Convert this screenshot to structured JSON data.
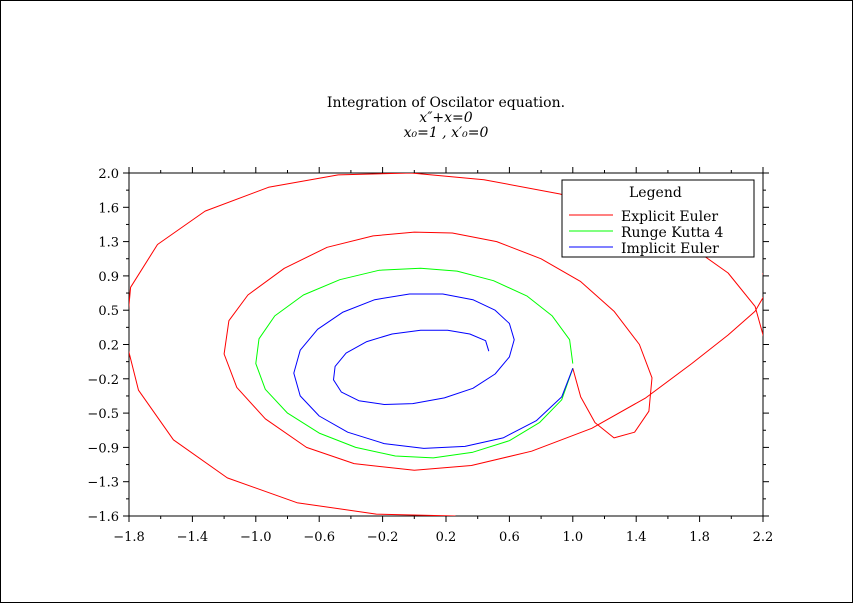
{
  "chart_data": {
    "type": "line",
    "title_lines": [
      "Integration of Oscilator equation.",
      "x″+x=0",
      "x₀=1 ,  x′₀=0"
    ],
    "xlabel": "",
    "ylabel": "",
    "xlim": [
      -1.8,
      2.2
    ],
    "ylim": [
      -1.6,
      2.0
    ],
    "x_ticks": [
      "−1.8",
      "−1.4",
      "−1.0",
      "−0.6",
      "−0.2",
      "0.2",
      "0.6",
      "1.0",
      "1.4",
      "1.8",
      "2.2"
    ],
    "y_ticks": [
      "2.0",
      "1.6",
      "1.3",
      "0.9",
      "0.5",
      "0.2",
      "−0.2",
      "−0.5",
      "−0.9",
      "−1.3",
      "−1.6"
    ],
    "grid": false,
    "legend": {
      "title": "Legend",
      "placement": "top-right"
    },
    "series": [
      {
        "name": "Explicit Euler",
        "color": "#ff0000",
        "x": [
          1.0,
          1.05,
          1.14,
          1.26,
          1.39,
          1.48,
          1.5,
          1.42,
          1.26,
          1.05,
          0.8,
          0.52,
          0.24,
          0.0,
          -0.26,
          -0.55,
          -0.82,
          -1.05,
          -1.17,
          -1.2,
          -1.12,
          -0.94,
          -0.68,
          -0.38,
          0.0,
          0.36,
          0.74,
          1.12,
          1.46,
          1.75,
          1.98,
          2.15,
          2.22,
          2.2
        ],
        "y": [
          -0.05,
          -0.35,
          -0.62,
          -0.78,
          -0.72,
          -0.5,
          -0.15,
          0.2,
          0.55,
          0.86,
          1.1,
          1.28,
          1.37,
          1.38,
          1.34,
          1.22,
          1.0,
          0.72,
          0.45,
          0.1,
          -0.25,
          -0.58,
          -0.88,
          -1.05,
          -1.12,
          -1.07,
          -0.92,
          -0.68,
          -0.36,
          0.0,
          0.3,
          0.55,
          0.75,
          0.95
        ]
      },
      {
        "name": "Explicit Euler (outer)",
        "color": "#ff0000",
        "legend": false,
        "x": [
          2.22,
          2.15,
          1.98,
          1.7,
          1.34,
          0.92,
          0.44,
          -0.02,
          -0.48,
          -0.92,
          -1.32,
          -1.62,
          -1.79,
          -1.82,
          -1.74,
          -1.52,
          -1.18,
          -0.74,
          -0.24,
          0.26
        ],
        "y": [
          0.18,
          0.6,
          0.95,
          1.28,
          1.56,
          1.78,
          1.93,
          2.0,
          1.98,
          1.85,
          1.6,
          1.25,
          0.8,
          0.25,
          -0.28,
          -0.8,
          -1.2,
          -1.46,
          -1.58,
          -1.6
        ]
      },
      {
        "name": "Runge Kutta 4",
        "color": "#00ff00",
        "x": [
          1.0,
          0.98,
          0.87,
          0.71,
          0.5,
          0.27,
          0.04,
          -0.22,
          -0.47,
          -0.7,
          -0.88,
          -0.98,
          -1.0,
          -0.94,
          -0.8,
          -0.6,
          -0.37,
          -0.12,
          0.12,
          0.37,
          0.6,
          0.79,
          0.93,
          1.0
        ],
        "y": [
          0.0,
          0.25,
          0.5,
          0.71,
          0.87,
          0.97,
          1.0,
          0.98,
          0.88,
          0.72,
          0.5,
          0.26,
          0.0,
          -0.27,
          -0.52,
          -0.73,
          -0.88,
          -0.97,
          -0.99,
          -0.93,
          -0.81,
          -0.62,
          -0.38,
          -0.05
        ]
      },
      {
        "name": "Implicit Euler",
        "color": "#0000ff",
        "x": [
          1.0,
          0.93,
          0.77,
          0.56,
          0.32,
          0.06,
          -0.19,
          -0.42,
          -0.6,
          -0.72,
          -0.76,
          -0.72,
          -0.61,
          -0.45,
          -0.25,
          -0.03,
          0.18,
          0.37,
          0.51,
          0.6,
          0.63,
          0.6,
          0.51,
          0.37,
          0.19,
          -0.01,
          -0.19,
          -0.35,
          -0.46,
          -0.51,
          -0.5,
          -0.43,
          -0.3,
          -0.14,
          0.04,
          0.21,
          0.35,
          0.45,
          0.47
        ],
        "y": [
          -0.05,
          -0.35,
          -0.6,
          -0.78,
          -0.87,
          -0.89,
          -0.84,
          -0.72,
          -0.55,
          -0.34,
          -0.1,
          0.14,
          0.36,
          0.54,
          0.67,
          0.73,
          0.73,
          0.67,
          0.56,
          0.42,
          0.25,
          0.07,
          -0.11,
          -0.26,
          -0.36,
          -0.42,
          -0.43,
          -0.39,
          -0.3,
          -0.17,
          -0.03,
          0.11,
          0.23,
          0.31,
          0.35,
          0.35,
          0.31,
          0.24,
          0.13
        ]
      }
    ]
  }
}
